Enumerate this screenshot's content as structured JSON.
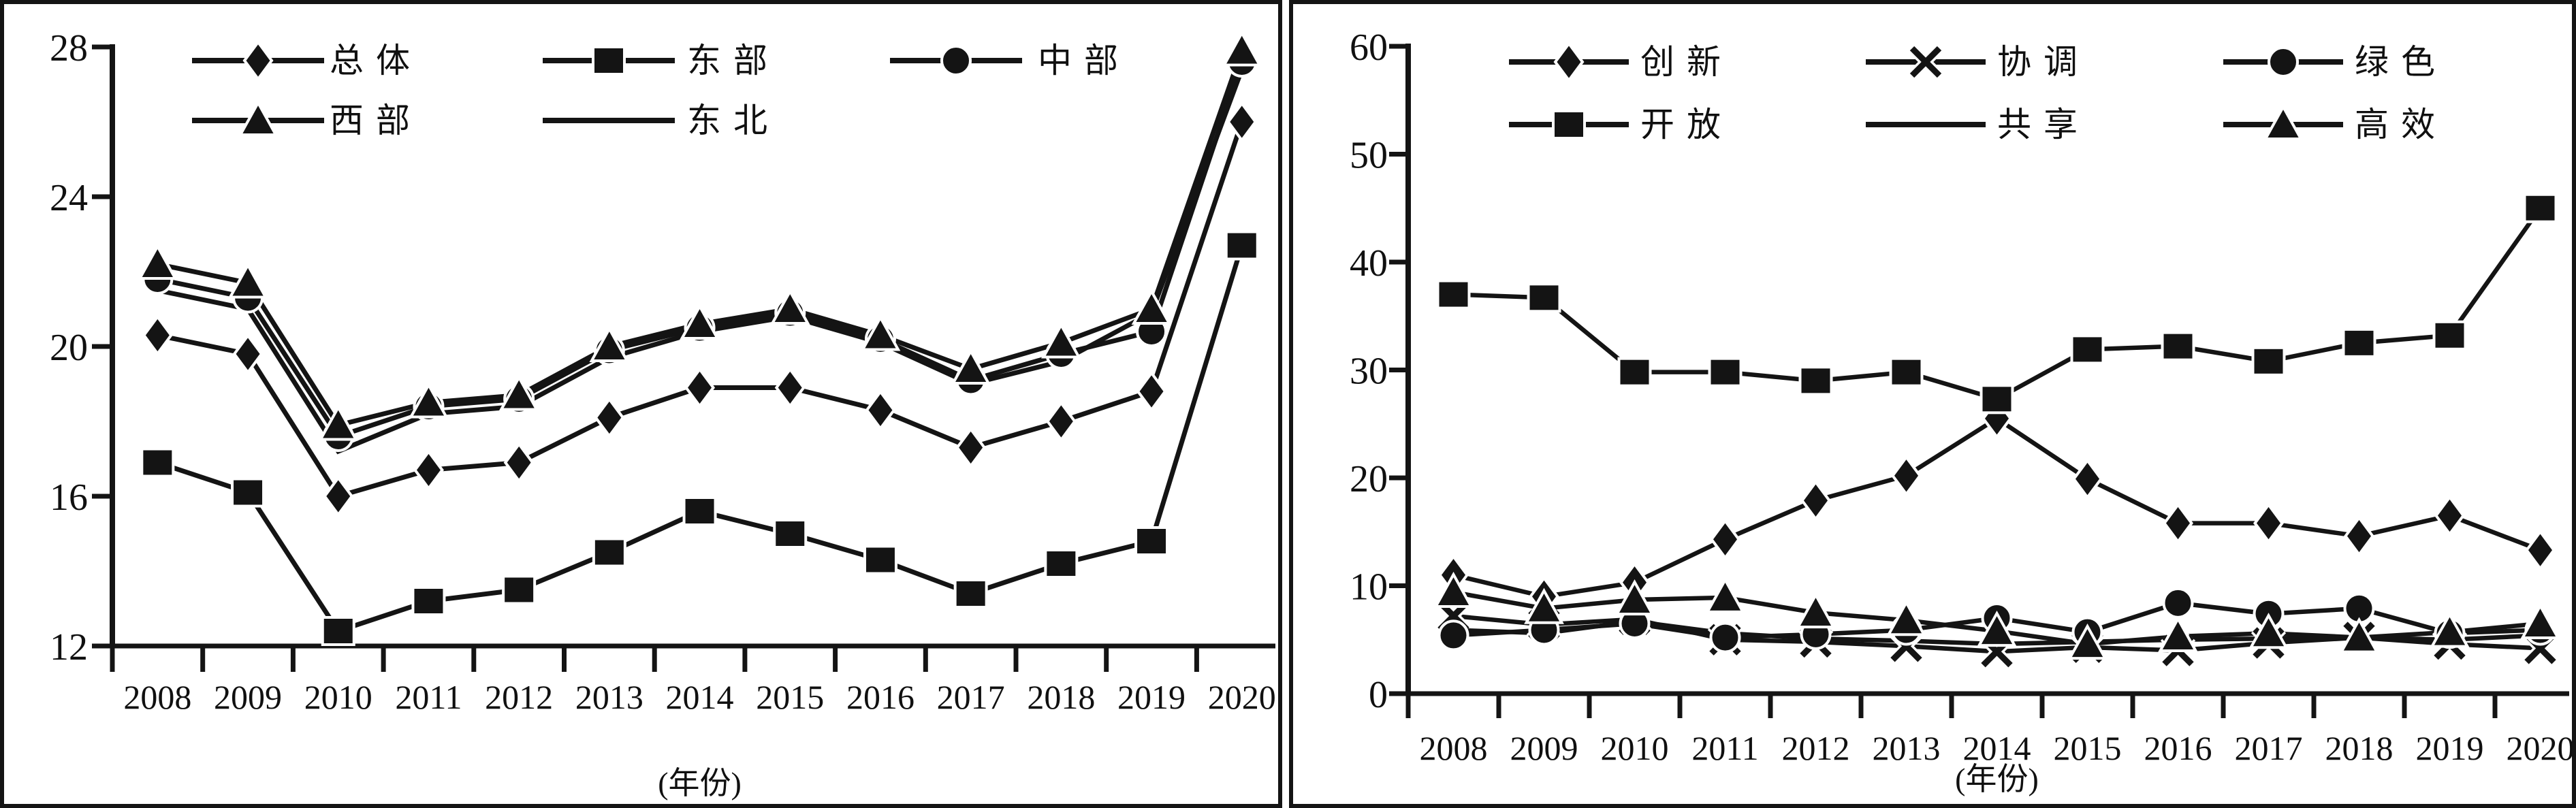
{
  "figure": {
    "description": "Two side-by-side black-and-white line charts, years 2008-2020",
    "ink_color": "#141414",
    "background_color": "#ffffff"
  },
  "chart_data": [
    {
      "type": "line",
      "panel": "left",
      "categories": [
        "2008",
        "2009",
        "2010",
        "2011",
        "2012",
        "2013",
        "2014",
        "2015",
        "2016",
        "2017",
        "2018",
        "2019",
        "2020"
      ],
      "xlabel": "(年份)",
      "ylim": [
        12,
        28
      ],
      "yticks": [
        12,
        16,
        20,
        24,
        28
      ],
      "grid": false,
      "legend_position": "top-inside-two-rows",
      "legend_order": [
        "总体",
        "东部",
        "中部",
        "西部",
        "东北"
      ],
      "series": [
        {
          "name": "总体",
          "marker": "diamond",
          "values": [
            20.3,
            19.8,
            16.0,
            16.7,
            16.9,
            18.1,
            18.9,
            18.9,
            18.3,
            17.3,
            18.0,
            18.8,
            26.0
          ]
        },
        {
          "name": "东部",
          "marker": "square",
          "values": [
            16.9,
            16.1,
            12.4,
            13.2,
            13.5,
            14.5,
            15.6,
            15.0,
            14.3,
            13.4,
            14.2,
            14.8,
            22.7
          ]
        },
        {
          "name": "中部",
          "marker": "circle",
          "values": [
            21.8,
            21.3,
            17.6,
            18.4,
            18.6,
            19.9,
            20.5,
            20.9,
            20.2,
            19.1,
            19.8,
            20.4,
            27.6
          ]
        },
        {
          "name": "西部",
          "marker": "triangle",
          "values": [
            22.2,
            21.7,
            17.9,
            18.5,
            18.7,
            20.0,
            20.6,
            21.0,
            20.3,
            19.4,
            20.1,
            21.0,
            27.9
          ]
        },
        {
          "name": "东北",
          "marker": "none",
          "values": [
            21.5,
            21.0,
            17.2,
            18.2,
            18.4,
            19.7,
            20.4,
            20.8,
            20.1,
            19.0,
            19.6,
            20.9,
            27.4
          ]
        }
      ]
    },
    {
      "type": "line",
      "panel": "right",
      "categories": [
        "2008",
        "2009",
        "2010",
        "2011",
        "2012",
        "2013",
        "2014",
        "2015",
        "2016",
        "2017",
        "2018",
        "2019",
        "2020"
      ],
      "xlabel": "(年份)",
      "ylim": [
        0,
        60
      ],
      "yticks": [
        0,
        10,
        20,
        30,
        40,
        50,
        60
      ],
      "grid": false,
      "legend_position": "top-inside-two-rows",
      "legend_order": [
        "创新",
        "协调",
        "绿色",
        "开放",
        "共享",
        "高效"
      ],
      "series": [
        {
          "name": "创新",
          "marker": "diamond",
          "values": [
            11.0,
            9.0,
            10.3,
            14.3,
            17.9,
            20.2,
            25.5,
            19.9,
            15.8,
            15.8,
            14.6,
            16.5,
            13.3
          ]
        },
        {
          "name": "协调",
          "marker": "xmark",
          "values": [
            7.2,
            6.4,
            6.9,
            5.0,
            4.8,
            4.4,
            3.9,
            4.3,
            4.0,
            4.7,
            5.2,
            4.6,
            4.2
          ]
        },
        {
          "name": "绿色",
          "marker": "circle",
          "values": [
            5.4,
            5.9,
            6.5,
            5.2,
            5.5,
            5.9,
            7.0,
            5.7,
            8.4,
            7.4,
            7.9,
            5.6,
            5.9
          ]
        },
        {
          "name": "开放",
          "marker": "square",
          "values": [
            37.0,
            36.7,
            29.8,
            29.8,
            29.0,
            29.8,
            27.3,
            31.9,
            32.2,
            30.8,
            32.5,
            33.2,
            45.0
          ]
        },
        {
          "name": "共享",
          "marker": "none",
          "values": [
            5.9,
            5.6,
            6.7,
            5.6,
            5.1,
            4.9,
            4.6,
            4.8,
            5.0,
            5.1,
            5.2,
            5.0,
            5.4
          ]
        },
        {
          "name": "高效",
          "marker": "triangle",
          "values": [
            9.4,
            7.9,
            8.7,
            8.9,
            7.5,
            6.8,
            5.8,
            4.6,
            5.3,
            5.6,
            5.2,
            5.7,
            6.5
          ]
        }
      ]
    }
  ]
}
